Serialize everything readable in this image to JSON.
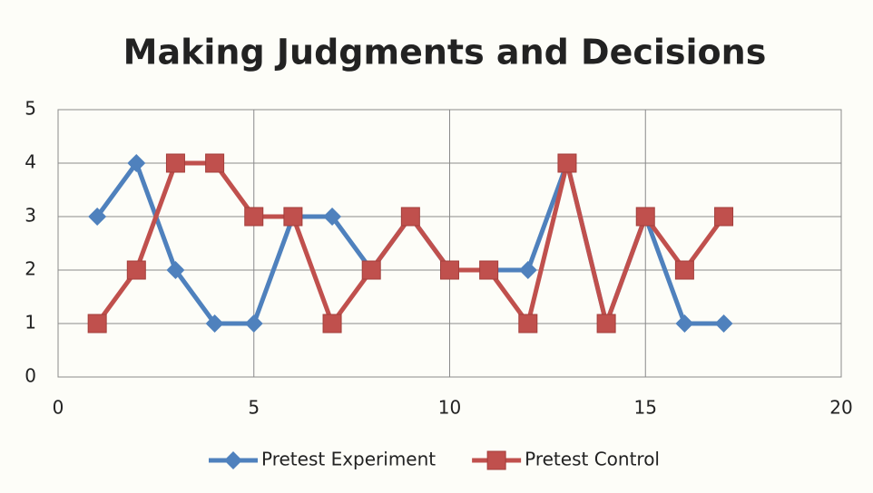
{
  "chart_data": {
    "type": "line",
    "title": "Making Judgments and Decisions",
    "x": [
      1,
      2,
      3,
      4,
      5,
      6,
      7,
      8,
      9,
      10,
      11,
      12,
      13,
      14,
      15,
      16,
      17
    ],
    "series": [
      {
        "name": "Pretest Experiment",
        "color": "#4f81bd",
        "marker": "diamond",
        "values": [
          3,
          4,
          2,
          1,
          1,
          3,
          3,
          2,
          3,
          2,
          2,
          2,
          4,
          1,
          3,
          1,
          1
        ]
      },
      {
        "name": "Pretest Control",
        "color": "#c0504d",
        "marker": "square",
        "values": [
          1,
          2,
          4,
          4,
          3,
          3,
          1,
          2,
          3,
          2,
          2,
          1,
          4,
          1,
          3,
          2,
          3
        ]
      }
    ],
    "xlim": [
      0,
      20
    ],
    "xticks": [
      0,
      5,
      10,
      15,
      20
    ],
    "ylim": [
      0,
      5
    ],
    "yticks": [
      0,
      1,
      2,
      3,
      4,
      5
    ],
    "grid": true,
    "legend": "bottom"
  }
}
